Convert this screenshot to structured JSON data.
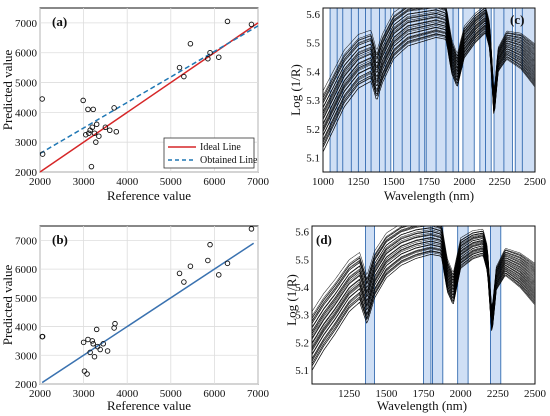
{
  "colors": {
    "ideal": "#d62728",
    "obtained": "#1f77b4",
    "fit_b": "#3a72b0",
    "band_fill": "#cfdff5",
    "band_stroke": "#1f5ca8",
    "spectra": "#000000"
  },
  "chart_data": [
    {
      "panel": "(a)",
      "type": "scatter",
      "xlabel": "Reference value",
      "ylabel": "Predicted value",
      "xlim": [
        2000,
        7000
      ],
      "ylim": [
        2000,
        7500
      ],
      "xticks": [
        2000,
        3000,
        4000,
        5000,
        6000,
        7000
      ],
      "yticks": [
        2000,
        3000,
        4000,
        5000,
        6000,
        7000
      ],
      "points": [
        [
          2050,
          4450
        ],
        [
          2060,
          2600
        ],
        [
          2990,
          4400
        ],
        [
          3050,
          3250
        ],
        [
          3100,
          4100
        ],
        [
          3120,
          3300
        ],
        [
          3150,
          3400
        ],
        [
          3180,
          2180
        ],
        [
          3200,
          3500
        ],
        [
          3220,
          4100
        ],
        [
          3250,
          3300
        ],
        [
          3280,
          3000
        ],
        [
          3300,
          3600
        ],
        [
          3350,
          3200
        ],
        [
          3500,
          3500
        ],
        [
          3600,
          3400
        ],
        [
          3700,
          4150
        ],
        [
          3750,
          3350
        ],
        [
          5200,
          5500
        ],
        [
          5300,
          5200
        ],
        [
          5450,
          6300
        ],
        [
          5850,
          5800
        ],
        [
          5900,
          6000
        ],
        [
          6100,
          5850
        ],
        [
          6300,
          7050
        ],
        [
          6850,
          6950
        ]
      ],
      "lines": [
        {
          "name": "Ideal Line",
          "x": [
            2000,
            7000
          ],
          "y": [
            2000,
            7000
          ],
          "style": "solid"
        },
        {
          "name": "Obtained Line",
          "x": [
            2000,
            7000
          ],
          "y": [
            2620,
            6900
          ],
          "style": "dashed"
        }
      ],
      "legend": [
        "Ideal Line",
        "Obtained Line"
      ],
      "legend_position": "bottom-right"
    },
    {
      "panel": "(b)",
      "type": "scatter",
      "xlabel": "Reference value",
      "ylabel": "Predicted value",
      "xlim": [
        2000,
        7000
      ],
      "ylim": [
        2000,
        7500
      ],
      "xticks": [
        2000,
        3000,
        4000,
        5000,
        6000,
        7000
      ],
      "yticks": [
        2000,
        3000,
        4000,
        5000,
        6000,
        7000
      ],
      "points": [
        [
          2050,
          3650
        ],
        [
          2060,
          3650
        ],
        [
          3000,
          3450
        ],
        [
          3020,
          2450
        ],
        [
          3080,
          2350
        ],
        [
          3100,
          3550
        ],
        [
          3150,
          3100
        ],
        [
          3200,
          3500
        ],
        [
          3220,
          3400
        ],
        [
          3250,
          2950
        ],
        [
          3300,
          3900
        ],
        [
          3320,
          3300
        ],
        [
          3380,
          3200
        ],
        [
          3450,
          3400
        ],
        [
          3550,
          3150
        ],
        [
          3700,
          3950
        ],
        [
          3720,
          4100
        ],
        [
          5200,
          5850
        ],
        [
          5300,
          5550
        ],
        [
          5450,
          6100
        ],
        [
          5850,
          6300
        ],
        [
          5900,
          6850
        ],
        [
          6100,
          5800
        ],
        [
          6300,
          6200
        ],
        [
          6850,
          7400
        ]
      ],
      "lines": [
        {
          "name": "",
          "x": [
            2050,
            6900
          ],
          "y": [
            2050,
            6900
          ],
          "style": "solid"
        }
      ]
    },
    {
      "panel": "(c)",
      "type": "line",
      "xlabel": "Wavelength (nm)",
      "ylabel": "Log (1/R)",
      "xlim": [
        1000,
        2500
      ],
      "ylim": [
        5.05,
        5.62
      ],
      "xticks": [
        1000,
        1250,
        1500,
        1750,
        2000,
        2250,
        2500
      ],
      "xtick_labels": [
        "1000",
        "1250",
        "1500",
        "1750",
        "2000",
        "2250",
        "2500"
      ],
      "yticks": [
        5.1,
        5.2,
        5.3,
        5.4,
        5.5,
        5.6
      ],
      "highlight_bands": [
        [
          1050,
          1480
        ],
        [
          1500,
          1720
        ],
        [
          1730,
          1960
        ],
        [
          1990,
          2070
        ],
        [
          2110,
          2190
        ],
        [
          2210,
          2340
        ],
        [
          2360,
          2500
        ]
      ],
      "band_dividers": [
        1100,
        1140,
        1200,
        1250,
        1300,
        1340,
        1400,
        1440,
        1560,
        1620,
        1680,
        1800,
        1870,
        1920,
        2150,
        2280,
        2410
      ],
      "series_count": 40,
      "spectrum_nodes": [
        [
          1000,
          5.22
        ],
        [
          1080,
          5.3
        ],
        [
          1150,
          5.37
        ],
        [
          1250,
          5.43
        ],
        [
          1340,
          5.45
        ],
        [
          1380,
          5.38
        ],
        [
          1420,
          5.44
        ],
        [
          1500,
          5.52
        ],
        [
          1600,
          5.56
        ],
        [
          1700,
          5.57
        ],
        [
          1800,
          5.58
        ],
        [
          1870,
          5.57
        ],
        [
          1910,
          5.45
        ],
        [
          1950,
          5.4
        ],
        [
          2000,
          5.5
        ],
        [
          2080,
          5.55
        ],
        [
          2150,
          5.58
        ],
        [
          2180,
          5.52
        ],
        [
          2210,
          5.28
        ],
        [
          2240,
          5.44
        ],
        [
          2300,
          5.49
        ],
        [
          2400,
          5.47
        ],
        [
          2500,
          5.42
        ]
      ],
      "spread": [
        0.1,
        0.03
      ]
    },
    {
      "panel": "(d)",
      "type": "line",
      "xlabel": "Wavelength (nm)",
      "ylabel": "Log (1/R)",
      "xlim": [
        1000,
        2500
      ],
      "ylim": [
        5.05,
        5.62
      ],
      "xticks": [
        1250,
        1500,
        1750,
        2000,
        2250,
        2500
      ],
      "xtick_labels": [
        "1250",
        "1500",
        "1750",
        "2000",
        "2250",
        "2500"
      ],
      "yticks": [
        5.1,
        5.2,
        5.3,
        5.4,
        5.5,
        5.6
      ],
      "highlight_bands": [
        [
          1360,
          1420
        ],
        [
          1750,
          1800
        ],
        [
          1810,
          1880
        ],
        [
          1980,
          2050
        ],
        [
          2200,
          2270
        ]
      ],
      "band_dividers": [],
      "series_count": 40,
      "spectrum_nodes": [
        [
          1000,
          5.2
        ],
        [
          1080,
          5.27
        ],
        [
          1150,
          5.32
        ],
        [
          1250,
          5.4
        ],
        [
          1320,
          5.43
        ],
        [
          1370,
          5.35
        ],
        [
          1420,
          5.44
        ],
        [
          1500,
          5.51
        ],
        [
          1600,
          5.55
        ],
        [
          1700,
          5.57
        ],
        [
          1800,
          5.58
        ],
        [
          1870,
          5.57
        ],
        [
          1910,
          5.44
        ],
        [
          1950,
          5.39
        ],
        [
          2000,
          5.52
        ],
        [
          2080,
          5.55
        ],
        [
          2150,
          5.56
        ],
        [
          2180,
          5.5
        ],
        [
          2210,
          5.27
        ],
        [
          2240,
          5.43
        ],
        [
          2300,
          5.49
        ],
        [
          2400,
          5.46
        ],
        [
          2500,
          5.41
        ]
      ],
      "spread": [
        0.1,
        0.03
      ]
    }
  ]
}
